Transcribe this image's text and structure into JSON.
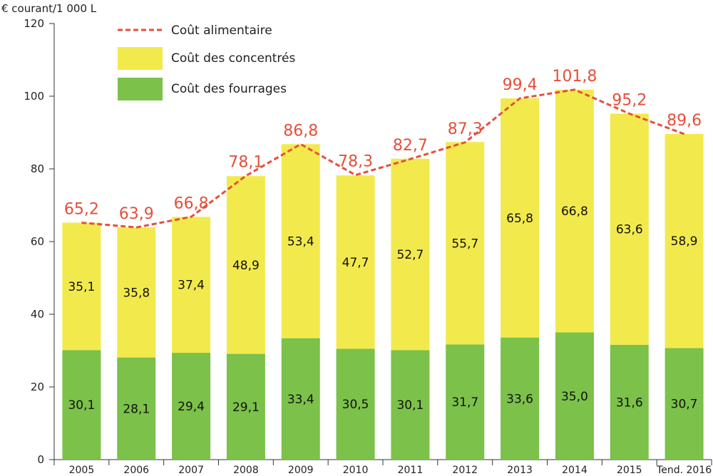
{
  "chart_data": {
    "type": "bar",
    "ylabel": "€ courant/1 000 L",
    "ylim": [
      0,
      120
    ],
    "yticks": [
      "0",
      "20",
      "40",
      "60",
      "80",
      "100",
      "120"
    ],
    "categories": [
      "2005",
      "2006",
      "2007",
      "2008",
      "2009",
      "2010",
      "2011",
      "2012",
      "2013",
      "2014",
      "2015",
      "Tend. 2016"
    ],
    "series": [
      {
        "name": "Coût des fourrages",
        "values": [
          30.1,
          28.1,
          29.4,
          29.1,
          33.4,
          30.5,
          30.1,
          31.7,
          33.6,
          35.0,
          31.6,
          30.7
        ],
        "labels": [
          "30,1",
          "28,1",
          "29,4",
          "29,1",
          "33,4",
          "30,5",
          "30,1",
          "31,7",
          "33,6",
          "35,0",
          "31,6",
          "30,7"
        ],
        "color": "#7bc14a"
      },
      {
        "name": "Coût des concentrés",
        "values": [
          35.1,
          35.8,
          37.4,
          48.9,
          53.4,
          47.7,
          52.7,
          55.7,
          65.8,
          66.8,
          63.6,
          58.9
        ],
        "labels": [
          "35,1",
          "35,8",
          "37,4",
          "48,9",
          "53,4",
          "47,7",
          "52,7",
          "55,7",
          "65,8",
          "66,8",
          "63,6",
          "58,9"
        ],
        "color": "#f2ea4d"
      },
      {
        "name": "Coût alimentaire",
        "type": "line",
        "style": "dashed",
        "values": [
          65.2,
          63.9,
          66.8,
          78.1,
          86.8,
          78.3,
          82.7,
          87.3,
          99.4,
          101.8,
          95.2,
          89.6
        ],
        "labels": [
          "65,2",
          "63,9",
          "66,8",
          "78,1",
          "86,8",
          "78,3",
          "82,7",
          "87,3",
          "99,4",
          "101,8",
          "95,2",
          "89,6"
        ],
        "color": "#e4503a"
      }
    ],
    "legend": [
      "Coût alimentaire",
      "Coût des concentrés",
      "Coût des fourrages"
    ],
    "legend_position": "top-left",
    "grid": false
  }
}
